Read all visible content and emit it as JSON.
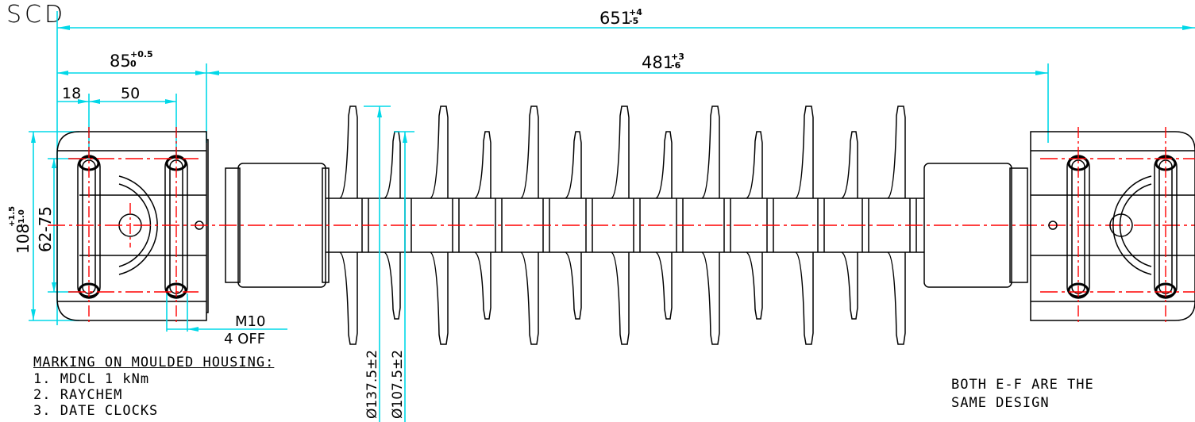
{
  "title_stamp": "SCD",
  "dimensions": {
    "overall_length": "651",
    "overall_tol_plus": "+4",
    "overall_tol_minus": "-5",
    "end_fitting_length": "85",
    "end_fitting_tol_plus": "+0.5",
    "end_fitting_tol_minus": "0",
    "insulator_length": "481",
    "insulator_tol_plus": "+3",
    "insulator_tol_minus": "-6",
    "dim_18": "18",
    "dim_50": "50",
    "height": "108",
    "height_tol_plus": "+1.5",
    "height_tol_minus": "-1.0",
    "pin_range": "62-75",
    "shed_large": "Ø137.5±2",
    "shed_small": "Ø107.5±2",
    "bolt_spec": "M10",
    "bolt_qty": "4 OFF"
  },
  "notes": {
    "marking_heading": "MARKING ON MOULDED HOUSING:",
    "marking_items": [
      "1. MDCL 1 kNm",
      "2. RAYCHEM",
      "3. DATE CLOCKS"
    ],
    "design_note_line1": "BOTH E-F ARE THE",
    "design_note_line2": "SAME DESIGN"
  }
}
